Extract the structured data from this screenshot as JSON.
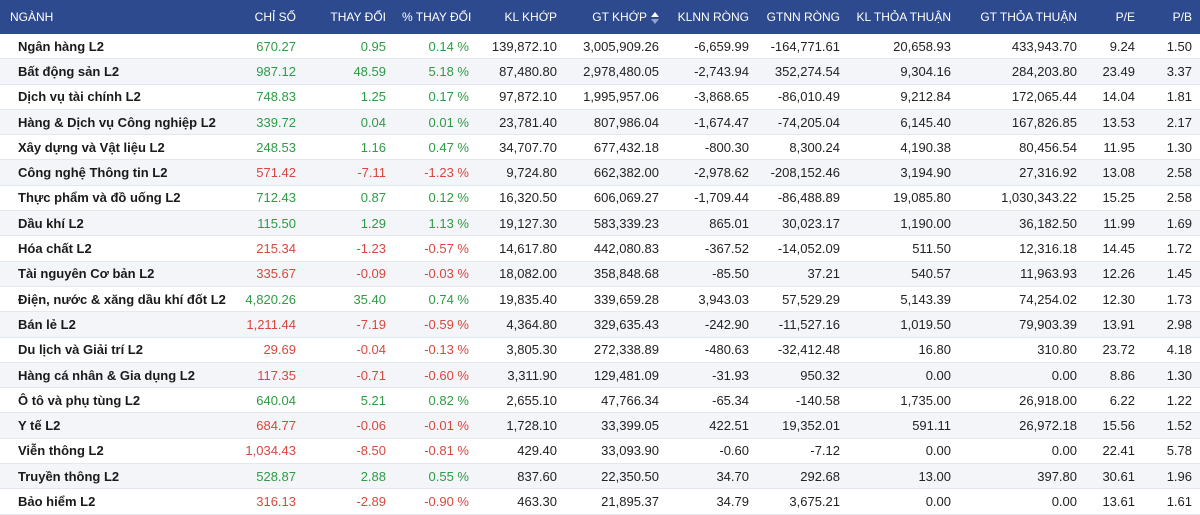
{
  "colors": {
    "header_bg": "#2e4a8e",
    "up": "#2e9b45",
    "down": "#d9473f",
    "row_alt": "#f3f5f8"
  },
  "headers": {
    "nganh": "NGÀNH",
    "chi_so": "CHỈ SỐ",
    "thay_doi": "THAY ĐỔI",
    "pct_thay_doi": "% THAY ĐỔI",
    "kl_khop": "KL KHỚP",
    "gt_khop": "GT KHỚP",
    "klnn_rong": "KLNN RÒNG",
    "gtnn_rong": "GTNN RÒNG",
    "kl_thoa_thuan": "KL THỎA THUẬN",
    "gt_thoa_thuan": "GT THỎA THUẬN",
    "pe": "P/E",
    "pb": "P/B"
  },
  "sort_icon": "sort-up-down-icon",
  "rows": [
    {
      "name": "Ngân hàng L2",
      "index": "670.27",
      "change": "0.95",
      "pct": "0.14 %",
      "dir": "up",
      "kl_khop": "139,872.10",
      "gt_khop": "3,005,909.26",
      "klnn": "-6,659.99",
      "gtnn": "-164,771.61",
      "kl_tt": "20,658.93",
      "gt_tt": "433,943.70",
      "pe": "9.24",
      "pb": "1.50"
    },
    {
      "name": "Bất động sản L2",
      "index": "987.12",
      "change": "48.59",
      "pct": "5.18 %",
      "dir": "up",
      "kl_khop": "87,480.80",
      "gt_khop": "2,978,480.05",
      "klnn": "-2,743.94",
      "gtnn": "352,274.54",
      "kl_tt": "9,304.16",
      "gt_tt": "284,203.80",
      "pe": "23.49",
      "pb": "3.37"
    },
    {
      "name": "Dịch vụ tài chính L2",
      "index": "748.83",
      "change": "1.25",
      "pct": "0.17 %",
      "dir": "up",
      "kl_khop": "97,872.10",
      "gt_khop": "1,995,957.06",
      "klnn": "-3,868.65",
      "gtnn": "-86,010.49",
      "kl_tt": "9,212.84",
      "gt_tt": "172,065.44",
      "pe": "14.04",
      "pb": "1.81"
    },
    {
      "name": "Hàng & Dịch vụ Công nghiệp L2",
      "index": "339.72",
      "change": "0.04",
      "pct": "0.01 %",
      "dir": "up",
      "kl_khop": "23,781.40",
      "gt_khop": "807,986.04",
      "klnn": "-1,674.47",
      "gtnn": "-74,205.04",
      "kl_tt": "6,145.40",
      "gt_tt": "167,826.85",
      "pe": "13.53",
      "pb": "2.17"
    },
    {
      "name": "Xây dựng và Vật liệu L2",
      "index": "248.53",
      "change": "1.16",
      "pct": "0.47 %",
      "dir": "up",
      "kl_khop": "34,707.70",
      "gt_khop": "677,432.18",
      "klnn": "-800.30",
      "gtnn": "8,300.24",
      "kl_tt": "4,190.38",
      "gt_tt": "80,456.54",
      "pe": "11.95",
      "pb": "1.30"
    },
    {
      "name": "Công nghệ Thông tin L2",
      "index": "571.42",
      "change": "-7.11",
      "pct": "-1.23 %",
      "dir": "down",
      "kl_khop": "9,724.80",
      "gt_khop": "662,382.00",
      "klnn": "-2,978.62",
      "gtnn": "-208,152.46",
      "kl_tt": "3,194.90",
      "gt_tt": "27,316.92",
      "pe": "13.08",
      "pb": "2.58"
    },
    {
      "name": "Thực phẩm và đồ uống L2",
      "index": "712.43",
      "change": "0.87",
      "pct": "0.12 %",
      "dir": "up",
      "kl_khop": "16,320.50",
      "gt_khop": "606,069.27",
      "klnn": "-1,709.44",
      "gtnn": "-86,488.89",
      "kl_tt": "19,085.80",
      "gt_tt": "1,030,343.22",
      "pe": "15.25",
      "pb": "2.58"
    },
    {
      "name": "Dầu khí L2",
      "index": "115.50",
      "change": "1.29",
      "pct": "1.13 %",
      "dir": "up",
      "kl_khop": "19,127.30",
      "gt_khop": "583,339.23",
      "klnn": "865.01",
      "gtnn": "30,023.17",
      "kl_tt": "1,190.00",
      "gt_tt": "36,182.50",
      "pe": "11.99",
      "pb": "1.69"
    },
    {
      "name": "Hóa chất L2",
      "index": "215.34",
      "change": "-1.23",
      "pct": "-0.57 %",
      "dir": "down",
      "kl_khop": "14,617.80",
      "gt_khop": "442,080.83",
      "klnn": "-367.52",
      "gtnn": "-14,052.09",
      "kl_tt": "511.50",
      "gt_tt": "12,316.18",
      "pe": "14.45",
      "pb": "1.72"
    },
    {
      "name": "Tài nguyên Cơ bản L2",
      "index": "335.67",
      "change": "-0.09",
      "pct": "-0.03 %",
      "dir": "down",
      "kl_khop": "18,082.00",
      "gt_khop": "358,848.68",
      "klnn": "-85.50",
      "gtnn": "37.21",
      "kl_tt": "540.57",
      "gt_tt": "11,963.93",
      "pe": "12.26",
      "pb": "1.45"
    },
    {
      "name": "Điện, nước & xăng dầu khí đốt L2",
      "index": "4,820.26",
      "change": "35.40",
      "pct": "0.74 %",
      "dir": "up",
      "kl_khop": "19,835.40",
      "gt_khop": "339,659.28",
      "klnn": "3,943.03",
      "gtnn": "57,529.29",
      "kl_tt": "5,143.39",
      "gt_tt": "74,254.02",
      "pe": "12.30",
      "pb": "1.73"
    },
    {
      "name": "Bán lẻ L2",
      "index": "1,211.44",
      "change": "-7.19",
      "pct": "-0.59 %",
      "dir": "down",
      "kl_khop": "4,364.80",
      "gt_khop": "329,635.43",
      "klnn": "-242.90",
      "gtnn": "-11,527.16",
      "kl_tt": "1,019.50",
      "gt_tt": "79,903.39",
      "pe": "13.91",
      "pb": "2.98"
    },
    {
      "name": "Du lịch và Giải trí L2",
      "index": "29.69",
      "change": "-0.04",
      "pct": "-0.13 %",
      "dir": "down",
      "kl_khop": "3,805.30",
      "gt_khop": "272,338.89",
      "klnn": "-480.63",
      "gtnn": "-32,412.48",
      "kl_tt": "16.80",
      "gt_tt": "310.80",
      "pe": "23.72",
      "pb": "4.18"
    },
    {
      "name": "Hàng cá nhân & Gia dụng L2",
      "index": "117.35",
      "change": "-0.71",
      "pct": "-0.60 %",
      "dir": "down",
      "kl_khop": "3,311.90",
      "gt_khop": "129,481.09",
      "klnn": "-31.93",
      "gtnn": "950.32",
      "kl_tt": "0.00",
      "gt_tt": "0.00",
      "pe": "8.86",
      "pb": "1.30"
    },
    {
      "name": "Ô tô và phụ tùng L2",
      "index": "640.04",
      "change": "5.21",
      "pct": "0.82 %",
      "dir": "up",
      "kl_khop": "2,655.10",
      "gt_khop": "47,766.34",
      "klnn": "-65.34",
      "gtnn": "-140.58",
      "kl_tt": "1,735.00",
      "gt_tt": "26,918.00",
      "pe": "6.22",
      "pb": "1.22"
    },
    {
      "name": "Y tế L2",
      "index": "684.77",
      "change": "-0.06",
      "pct": "-0.01 %",
      "dir": "down",
      "kl_khop": "1,728.10",
      "gt_khop": "33,399.05",
      "klnn": "422.51",
      "gtnn": "19,352.01",
      "kl_tt": "591.11",
      "gt_tt": "26,972.18",
      "pe": "15.56",
      "pb": "1.52"
    },
    {
      "name": "Viễn thông L2",
      "index": "1,034.43",
      "change": "-8.50",
      "pct": "-0.81 %",
      "dir": "down",
      "kl_khop": "429.40",
      "gt_khop": "33,093.90",
      "klnn": "-0.60",
      "gtnn": "-7.12",
      "kl_tt": "0.00",
      "gt_tt": "0.00",
      "pe": "22.41",
      "pb": "5.78"
    },
    {
      "name": "Truyền thông L2",
      "index": "528.87",
      "change": "2.88",
      "pct": "0.55 %",
      "dir": "up",
      "kl_khop": "837.60",
      "gt_khop": "22,350.50",
      "klnn": "34.70",
      "gtnn": "292.68",
      "kl_tt": "13.00",
      "gt_tt": "397.80",
      "pe": "30.61",
      "pb": "1.96"
    },
    {
      "name": "Bảo hiểm L2",
      "index": "316.13",
      "change": "-2.89",
      "pct": "-0.90 %",
      "dir": "down",
      "kl_khop": "463.30",
      "gt_khop": "21,895.37",
      "klnn": "34.79",
      "gtnn": "3,675.21",
      "kl_tt": "0.00",
      "gt_tt": "0.00",
      "pe": "13.61",
      "pb": "1.61"
    }
  ]
}
